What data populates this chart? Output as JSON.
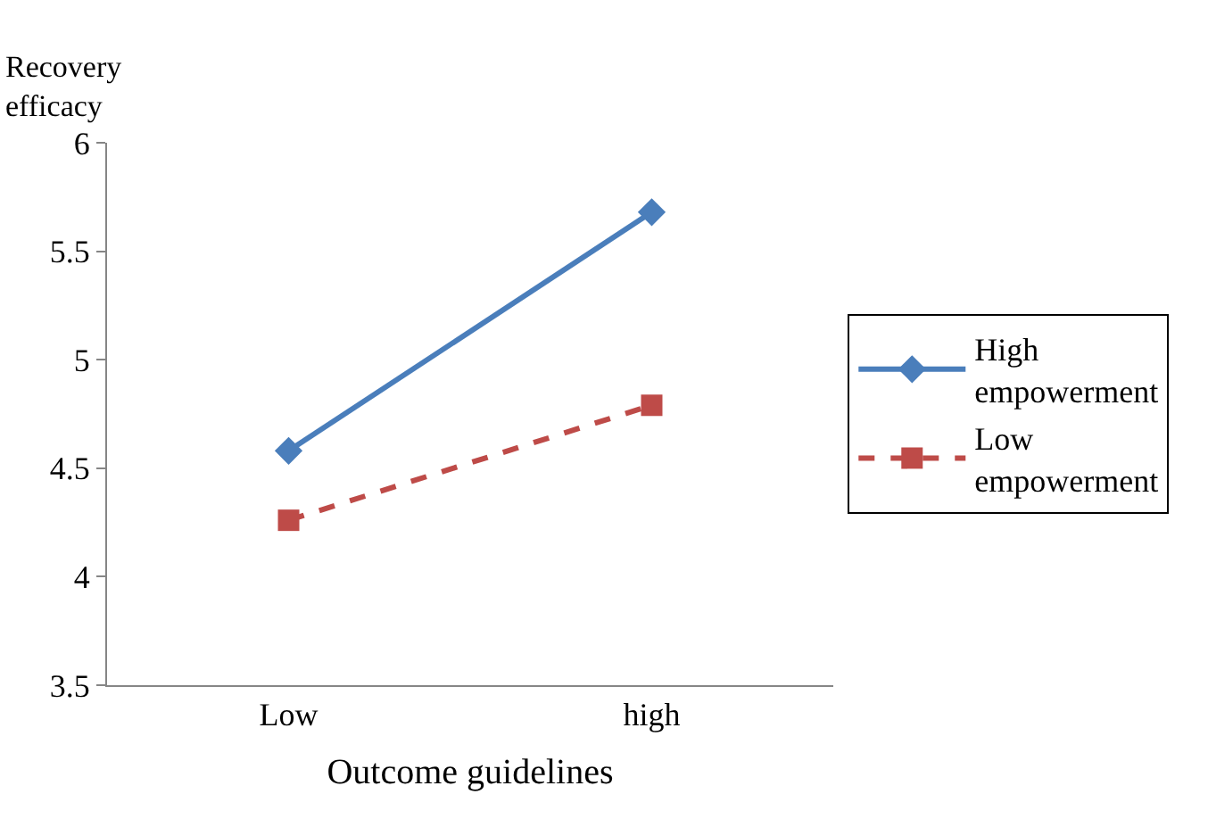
{
  "chart_data": {
    "type": "line",
    "ylabel": "Recovery efficacy",
    "xlabel": "Outcome guidelines",
    "categories": [
      "Low",
      "high"
    ],
    "series": [
      {
        "name": "High empowerment",
        "color": "#4a7ebb",
        "values": [
          4.58,
          5.68
        ],
        "marker": "diamond",
        "line_style": "solid"
      },
      {
        "name": "Low empowerment",
        "color": "#be4b48",
        "values": [
          4.26,
          4.79
        ],
        "marker": "square",
        "line_style": "dashed"
      }
    ],
    "ylim": [
      3.5,
      6
    ],
    "yticks": [
      3.5,
      4,
      4.5,
      5,
      5.5,
      6
    ],
    "grid": false,
    "legend": "right"
  }
}
